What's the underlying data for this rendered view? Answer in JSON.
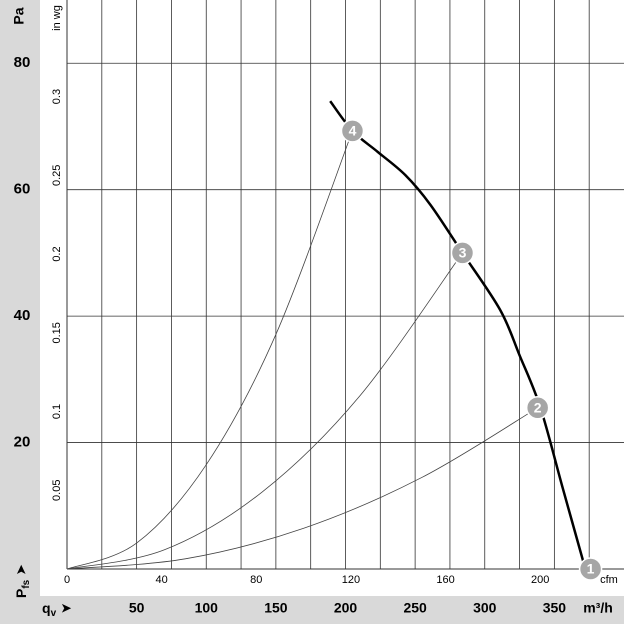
{
  "chart_data": {
    "type": "line",
    "y_unit": "Pa",
    "y2_unit": "in wg",
    "x_unit": "m³/h",
    "x2_unit": "cfm",
    "y_symbol": {
      "letter": "P",
      "subscript": "fs",
      "arrow": "➤"
    },
    "x_symbol": {
      "letter": "q",
      "subscript": "v",
      "arrow": "➤"
    },
    "xlim": [
      0,
      400
    ],
    "xticks": [
      50,
      100,
      150,
      200,
      250,
      300,
      350
    ],
    "xgrid": [
      25,
      50,
      75,
      100,
      125,
      150,
      175,
      200,
      225,
      250,
      275,
      300,
      325,
      350,
      375
    ],
    "ylim": [
      0,
      90
    ],
    "yticks": [
      20,
      40,
      60,
      80
    ],
    "x2lim": [
      0,
      235.4
    ],
    "x2ticks": [
      0,
      40,
      80,
      120,
      160,
      200
    ],
    "y2lim": [
      0,
      0.3613
    ],
    "y2ticks": [
      0.05,
      0.1,
      0.15,
      0.2,
      0.25,
      0.3
    ],
    "fan_curve": {
      "color": "#000000",
      "x": [
        189,
        205,
        223,
        243,
        261,
        284,
        311,
        325,
        340,
        356,
        372
      ],
      "values": [
        74,
        69.3,
        66,
        62.3,
        57.6,
        50,
        41,
        33.8,
        25.5,
        12.8,
        0.2
      ]
    },
    "system_curves": [
      {
        "x": [
          0,
          85,
          170,
          255,
          338
        ],
        "values": [
          0,
          1.61,
          6.45,
          14.5,
          25.5
        ]
      },
      {
        "x": [
          0,
          70,
          140,
          210,
          284
        ],
        "values": [
          0,
          3.04,
          12.15,
          27.3,
          50
        ]
      },
      {
        "x": [
          0,
          50,
          100,
          150,
          205
        ],
        "values": [
          0,
          4.1,
          16.5,
          37.1,
          69.3
        ]
      }
    ],
    "points": [
      {
        "label": "1",
        "x": 376,
        "value": 0
      },
      {
        "label": "2",
        "x": 338,
        "value": 25.5
      },
      {
        "label": "3",
        "x": 284,
        "value": 50
      },
      {
        "label": "4",
        "x": 205,
        "value": 69.3
      }
    ]
  }
}
